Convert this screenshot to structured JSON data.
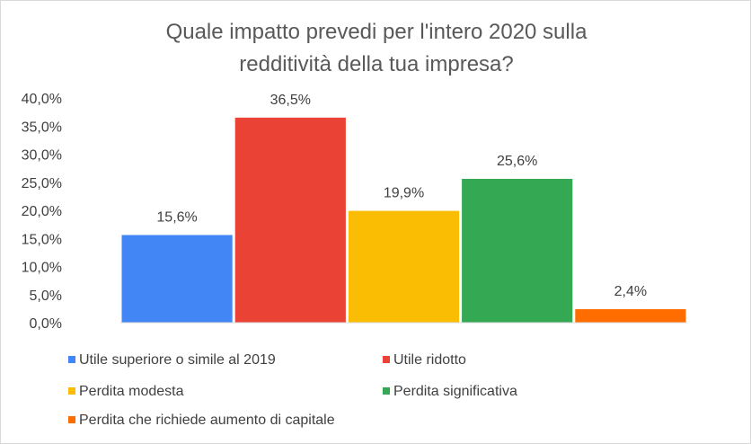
{
  "chart_data": {
    "type": "bar",
    "title": "Quale impatto prevedi per l'intero 2020 sulla redditività della tua impresa?",
    "title_lines": [
      "Quale impatto prevedi per l'intero 2020 sulla",
      "redditività della tua impresa?"
    ],
    "categories": [
      "Utile superiore o simile al 2019",
      "Utile ridotto",
      "Perdita modesta",
      "Perdita significativa",
      "Perdita che richiede aumento di capitale"
    ],
    "values": [
      15.6,
      36.5,
      19.9,
      25.6,
      2.4
    ],
    "value_labels": [
      "15,6%",
      "36,5%",
      "19,9%",
      "25,6%",
      "2,4%"
    ],
    "colors": [
      "#4285f4",
      "#ea4335",
      "#fbbc04",
      "#34a853",
      "#ff6d01"
    ],
    "ylim": [
      0,
      40
    ],
    "y_ticks": [
      0,
      5,
      10,
      15,
      20,
      25,
      30,
      35,
      40
    ],
    "y_tick_labels": [
      "0,0%",
      "5,0%",
      "10,0%",
      "15,0%",
      "20,0%",
      "25,0%",
      "30,0%",
      "35,0%",
      "40,0%"
    ],
    "xlabel": "",
    "ylabel": "",
    "grid": false,
    "legend_position": "bottom"
  }
}
